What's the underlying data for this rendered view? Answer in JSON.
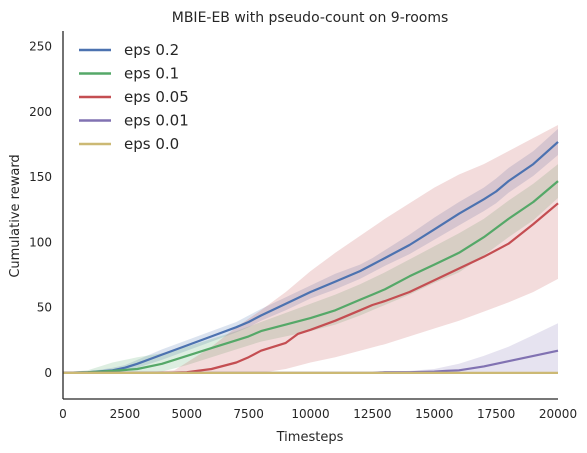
{
  "chart_data": {
    "type": "line",
    "title": "MBIE-EB with pseudo-count on 9-rooms",
    "xlabel": "Timesteps",
    "ylabel": "Cumulative reward",
    "xlim": [
      0,
      20000
    ],
    "ylim": [
      -20,
      262
    ],
    "xticks": [
      0,
      2500,
      5000,
      7500,
      10000,
      12500,
      15000,
      17500,
      20000
    ],
    "yticks": [
      0,
      50,
      100,
      150,
      200,
      250
    ],
    "grid": false,
    "legend_position": "top-left",
    "series": [
      {
        "name": "eps 0.2",
        "color": "#4c72b0",
        "points": [
          [
            0,
            0
          ],
          [
            1000,
            0.5
          ],
          [
            2000,
            2
          ],
          [
            2500,
            4
          ],
          [
            3000,
            7
          ],
          [
            4000,
            14
          ],
          [
            5000,
            21
          ],
          [
            6000,
            28
          ],
          [
            7000,
            35
          ],
          [
            7500,
            39
          ],
          [
            8000,
            44
          ],
          [
            9000,
            53
          ],
          [
            10000,
            62
          ],
          [
            11000,
            70
          ],
          [
            12000,
            78
          ],
          [
            12500,
            83
          ],
          [
            13000,
            88
          ],
          [
            14000,
            98
          ],
          [
            15000,
            110
          ],
          [
            16000,
            122
          ],
          [
            17000,
            133
          ],
          [
            17500,
            139
          ],
          [
            18000,
            147
          ],
          [
            19000,
            160
          ],
          [
            20000,
            177
          ]
        ],
        "upper": [
          [
            0,
            0
          ],
          [
            1000,
            1
          ],
          [
            2000,
            4
          ],
          [
            2500,
            6
          ],
          [
            3000,
            10
          ],
          [
            4000,
            18
          ],
          [
            5000,
            25
          ],
          [
            6000,
            32
          ],
          [
            7000,
            39
          ],
          [
            7500,
            44
          ],
          [
            8000,
            49
          ],
          [
            9000,
            58
          ],
          [
            10000,
            67
          ],
          [
            11000,
            76
          ],
          [
            12000,
            83
          ],
          [
            12500,
            88
          ],
          [
            13000,
            94
          ],
          [
            14000,
            106
          ],
          [
            15000,
            119
          ],
          [
            16000,
            131
          ],
          [
            17000,
            142
          ],
          [
            17500,
            149
          ],
          [
            18000,
            157
          ],
          [
            19000,
            170
          ],
          [
            20000,
            187
          ]
        ],
        "lower": [
          [
            0,
            0
          ],
          [
            1000,
            0
          ],
          [
            2000,
            0.5
          ],
          [
            2500,
            2
          ],
          [
            3000,
            4
          ],
          [
            4000,
            10
          ],
          [
            5000,
            17
          ],
          [
            6000,
            24
          ],
          [
            7000,
            31
          ],
          [
            7500,
            35
          ],
          [
            8000,
            40
          ],
          [
            9000,
            48
          ],
          [
            10000,
            57
          ],
          [
            11000,
            64
          ],
          [
            12000,
            72
          ],
          [
            12500,
            77
          ],
          [
            13000,
            82
          ],
          [
            14000,
            91
          ],
          [
            15000,
            102
          ],
          [
            16000,
            113
          ],
          [
            17000,
            124
          ],
          [
            17500,
            130
          ],
          [
            18000,
            138
          ],
          [
            19000,
            151
          ],
          [
            20000,
            167
          ]
        ]
      },
      {
        "name": "eps 0.1",
        "color": "#55a868",
        "points": [
          [
            0,
            0
          ],
          [
            1000,
            0.5
          ],
          [
            2000,
            1.5
          ],
          [
            3000,
            3
          ],
          [
            4000,
            7
          ],
          [
            5000,
            13
          ],
          [
            6000,
            19
          ],
          [
            7000,
            25
          ],
          [
            7500,
            28
          ],
          [
            8000,
            32
          ],
          [
            9000,
            37
          ],
          [
            10000,
            42
          ],
          [
            11000,
            48
          ],
          [
            12000,
            56
          ],
          [
            12500,
            60
          ],
          [
            13000,
            64
          ],
          [
            14000,
            74
          ],
          [
            15000,
            83
          ],
          [
            16000,
            92
          ],
          [
            17000,
            104
          ],
          [
            18000,
            118
          ],
          [
            19000,
            131
          ],
          [
            20000,
            147
          ]
        ],
        "upper": [
          [
            0,
            0
          ],
          [
            1000,
            2
          ],
          [
            2000,
            8
          ],
          [
            2500,
            10
          ],
          [
            3000,
            12
          ],
          [
            4000,
            15
          ],
          [
            5000,
            20
          ],
          [
            6000,
            26
          ],
          [
            7000,
            32
          ],
          [
            8000,
            39
          ],
          [
            9000,
            46
          ],
          [
            10000,
            53
          ],
          [
            11000,
            60
          ],
          [
            12000,
            68
          ],
          [
            13000,
            77
          ],
          [
            14000,
            87
          ],
          [
            15000,
            97
          ],
          [
            16000,
            107
          ],
          [
            17000,
            118
          ],
          [
            18000,
            132
          ],
          [
            19000,
            145
          ],
          [
            20000,
            160
          ]
        ],
        "lower": [
          [
            0,
            0
          ],
          [
            1000,
            0
          ],
          [
            2000,
            0
          ],
          [
            3000,
            0
          ],
          [
            4000,
            1
          ],
          [
            5000,
            6
          ],
          [
            6000,
            12
          ],
          [
            7000,
            18
          ],
          [
            8000,
            24
          ],
          [
            9000,
            28
          ],
          [
            10000,
            32
          ],
          [
            11000,
            37
          ],
          [
            12000,
            44
          ],
          [
            13000,
            52
          ],
          [
            14000,
            60
          ],
          [
            15000,
            69
          ],
          [
            16000,
            77
          ],
          [
            17000,
            90
          ],
          [
            18000,
            104
          ],
          [
            19000,
            117
          ],
          [
            20000,
            134
          ]
        ]
      },
      {
        "name": "eps 0.05",
        "color": "#c44e52",
        "points": [
          [
            0,
            0
          ],
          [
            2000,
            0
          ],
          [
            4000,
            0
          ],
          [
            5000,
            0.5
          ],
          [
            6000,
            3
          ],
          [
            7000,
            8
          ],
          [
            7500,
            12
          ],
          [
            8000,
            17
          ],
          [
            9000,
            23
          ],
          [
            9500,
            30
          ],
          [
            10000,
            33
          ],
          [
            11000,
            40
          ],
          [
            12000,
            48
          ],
          [
            12500,
            52
          ],
          [
            13000,
            55
          ],
          [
            14000,
            62
          ],
          [
            15000,
            71
          ],
          [
            16000,
            80
          ],
          [
            17000,
            89
          ],
          [
            18000,
            99
          ],
          [
            19000,
            114
          ],
          [
            20000,
            130
          ]
        ],
        "upper": [
          [
            0,
            0
          ],
          [
            3000,
            0
          ],
          [
            4500,
            2
          ],
          [
            5000,
            8
          ],
          [
            6000,
            20
          ],
          [
            7000,
            35
          ],
          [
            8000,
            48
          ],
          [
            9000,
            62
          ],
          [
            10000,
            78
          ],
          [
            11000,
            92
          ],
          [
            12000,
            105
          ],
          [
            13000,
            118
          ],
          [
            14000,
            130
          ],
          [
            15000,
            142
          ],
          [
            16000,
            152
          ],
          [
            17000,
            160
          ],
          [
            18000,
            170
          ],
          [
            19000,
            180
          ],
          [
            20000,
            190
          ]
        ],
        "lower": [
          [
            0,
            0
          ],
          [
            4000,
            0
          ],
          [
            5000,
            0
          ],
          [
            6000,
            0
          ],
          [
            7000,
            0
          ],
          [
            8000,
            0
          ],
          [
            9000,
            3
          ],
          [
            10000,
            8
          ],
          [
            11000,
            12
          ],
          [
            12000,
            17
          ],
          [
            13000,
            22
          ],
          [
            14000,
            28
          ],
          [
            15000,
            34
          ],
          [
            16000,
            40
          ],
          [
            17000,
            47
          ],
          [
            18000,
            54
          ],
          [
            19000,
            62
          ],
          [
            20000,
            72
          ]
        ]
      },
      {
        "name": "eps 0.01",
        "color": "#8172b2",
        "points": [
          [
            0,
            0
          ],
          [
            12500,
            0
          ],
          [
            13000,
            0.5
          ],
          [
            14000,
            0.5
          ],
          [
            15000,
            1
          ],
          [
            15500,
            1.5
          ],
          [
            16000,
            2
          ],
          [
            17000,
            5
          ],
          [
            18000,
            9
          ],
          [
            19000,
            13
          ],
          [
            20000,
            17
          ]
        ],
        "upper": [
          [
            0,
            0
          ],
          [
            12500,
            0
          ],
          [
            13000,
            1
          ],
          [
            14000,
            1.5
          ],
          [
            15000,
            3
          ],
          [
            16000,
            7
          ],
          [
            17000,
            13
          ],
          [
            18000,
            20
          ],
          [
            19000,
            29
          ],
          [
            20000,
            38
          ]
        ],
        "lower": [
          [
            0,
            0
          ],
          [
            12500,
            0
          ],
          [
            14000,
            0
          ],
          [
            15000,
            0
          ],
          [
            16000,
            0
          ],
          [
            17000,
            0
          ],
          [
            18000,
            0
          ],
          [
            19000,
            0
          ],
          [
            20000,
            0
          ]
        ]
      },
      {
        "name": "eps 0.0",
        "color": "#ccb974",
        "points": [
          [
            0,
            0
          ],
          [
            20000,
            0
          ]
        ],
        "upper": [
          [
            0,
            0
          ],
          [
            20000,
            0
          ]
        ],
        "lower": [
          [
            0,
            0
          ],
          [
            20000,
            0
          ]
        ]
      }
    ]
  }
}
